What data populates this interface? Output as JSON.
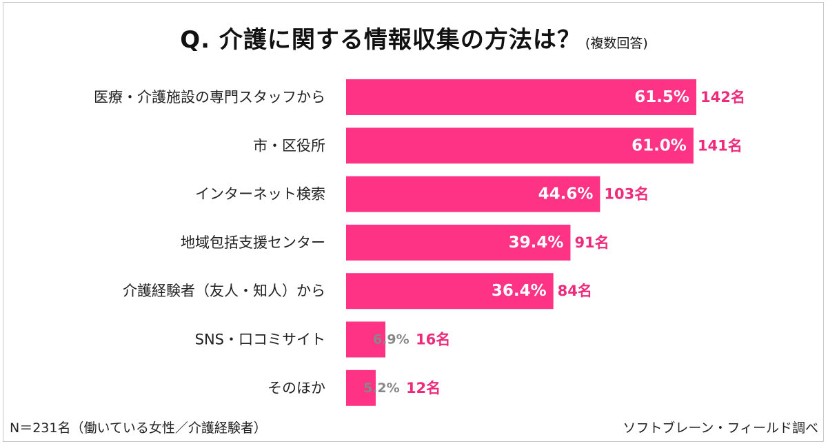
{
  "title": "Q.  介護に関する情報収集の方法は？",
  "title_note": "(複数回答)",
  "footer_left": "N＝231名（働いている女性／介護経験者）",
  "footer_right": "ソフトブレーン・フィールド調べ",
  "colors": {
    "bar": "#ff3385",
    "value_inside": "#ffffff",
    "value_small": "#888888",
    "count": "#ee2a7b",
    "label": "#222222"
  },
  "chart_data": {
    "type": "bar",
    "orientation": "horizontal",
    "categories": [
      "医療・介護施設の専門スタッフから",
      "市・区役所",
      "インターネット検索",
      "地域包括支援センター",
      "介護経験者（友人・知人）から",
      "SNS・口コミサイト",
      "そのほか"
    ],
    "values": [
      61.5,
      61.0,
      44.6,
      39.4,
      36.4,
      6.9,
      5.2
    ],
    "value_labels": [
      "61.5%",
      "61.0%",
      "44.6%",
      "39.4%",
      "36.4%",
      "6.9%",
      "5.2%"
    ],
    "counts": [
      "142名",
      "141名",
      "103名",
      "91名",
      "84名",
      "16名",
      "12名"
    ],
    "unit": "%",
    "xlim": [
      0,
      100
    ],
    "grid": false,
    "legend": "none"
  }
}
